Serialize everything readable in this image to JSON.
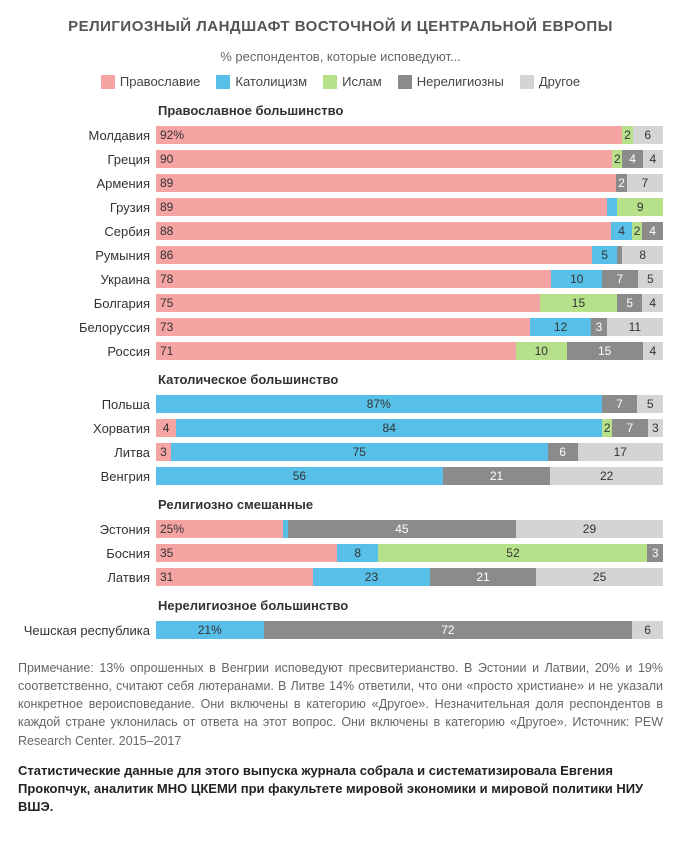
{
  "title": "РЕЛИГИОЗНЫЙ ЛАНДШАФТ ВОСТОЧНОЙ И ЦЕНТРАЛЬНОЙ ЕВРОПЫ",
  "subtitle": "% респондентов, которые исповедуют...",
  "colors": {
    "orthodox": "#f5a3a3",
    "catholic": "#58c0e8",
    "islam": "#b7e08a",
    "nonrel": "#8b8b8b",
    "other": "#d4d4d4"
  },
  "legend": [
    {
      "key": "orthodox",
      "label": "Православие"
    },
    {
      "key": "catholic",
      "label": "Католицизм"
    },
    {
      "key": "islam",
      "label": "Ислам"
    },
    {
      "key": "nonrel",
      "label": "Нерелигиозны"
    },
    {
      "key": "other",
      "label": "Другое"
    }
  ],
  "groups": [
    {
      "title": "Православное большинство",
      "rows": [
        {
          "country": "Молдавия",
          "segs": [
            {
              "k": "orthodox",
              "v": 92,
              "t": "92%",
              "left": true
            },
            {
              "k": "islam",
              "v": 2,
              "t": "2"
            },
            {
              "k": "other",
              "v": 6,
              "t": "6"
            }
          ]
        },
        {
          "country": "Греция",
          "segs": [
            {
              "k": "orthodox",
              "v": 90,
              "t": "90",
              "left": true
            },
            {
              "k": "islam",
              "v": 2,
              "t": "2"
            },
            {
              "k": "nonrel",
              "v": 4,
              "t": "4"
            },
            {
              "k": "other",
              "v": 4,
              "t": "4"
            }
          ]
        },
        {
          "country": "Армения",
          "segs": [
            {
              "k": "orthodox",
              "v": 89,
              "t": "89",
              "left": true
            },
            {
              "k": "nonrel",
              "v": 2,
              "t": "2"
            },
            {
              "k": "other",
              "v": 7,
              "t": "7"
            }
          ]
        },
        {
          "country": "Грузия",
          "segs": [
            {
              "k": "orthodox",
              "v": 89,
              "t": "89",
              "left": true
            },
            {
              "k": "catholic",
              "v": 2,
              "t": ""
            },
            {
              "k": "islam",
              "v": 9,
              "t": "9"
            }
          ]
        },
        {
          "country": "Сербия",
          "segs": [
            {
              "k": "orthodox",
              "v": 88,
              "t": "88",
              "left": true
            },
            {
              "k": "catholic",
              "v": 4,
              "t": "4"
            },
            {
              "k": "islam",
              "v": 2,
              "t": "2"
            },
            {
              "k": "nonrel",
              "v": 4,
              "t": "4"
            }
          ]
        },
        {
          "country": "Румыния",
          "segs": [
            {
              "k": "orthodox",
              "v": 86,
              "t": "86",
              "left": true
            },
            {
              "k": "catholic",
              "v": 5,
              "t": "5"
            },
            {
              "k": "nonrel",
              "v": 1,
              "t": ""
            },
            {
              "k": "other",
              "v": 8,
              "t": "8"
            }
          ]
        },
        {
          "country": "Украина",
          "segs": [
            {
              "k": "orthodox",
              "v": 78,
              "t": "78",
              "left": true
            },
            {
              "k": "catholic",
              "v": 10,
              "t": "10"
            },
            {
              "k": "nonrel",
              "v": 7,
              "t": "7"
            },
            {
              "k": "other",
              "v": 5,
              "t": "5"
            }
          ]
        },
        {
          "country": "Болгария",
          "segs": [
            {
              "k": "orthodox",
              "v": 75,
              "t": "75",
              "left": true
            },
            {
              "k": "islam",
              "v": 15,
              "t": "15"
            },
            {
              "k": "nonrel",
              "v": 5,
              "t": "5"
            },
            {
              "k": "other",
              "v": 4,
              "t": "4"
            }
          ]
        },
        {
          "country": "Белоруссия",
          "segs": [
            {
              "k": "orthodox",
              "v": 73,
              "t": "73",
              "left": true
            },
            {
              "k": "catholic",
              "v": 12,
              "t": "12"
            },
            {
              "k": "nonrel",
              "v": 3,
              "t": "3"
            },
            {
              "k": "other",
              "v": 11,
              "t": "11"
            }
          ]
        },
        {
          "country": "Россия",
          "segs": [
            {
              "k": "orthodox",
              "v": 71,
              "t": "71",
              "left": true
            },
            {
              "k": "islam",
              "v": 10,
              "t": "10"
            },
            {
              "k": "nonrel",
              "v": 15,
              "t": "15"
            },
            {
              "k": "other",
              "v": 4,
              "t": "4"
            }
          ]
        }
      ]
    },
    {
      "title": "Католическое большинство",
      "rows": [
        {
          "country": "Польша",
          "segs": [
            {
              "k": "catholic",
              "v": 87,
              "t": "87%"
            },
            {
              "k": "nonrel",
              "v": 7,
              "t": "7"
            },
            {
              "k": "other",
              "v": 5,
              "t": "5"
            }
          ]
        },
        {
          "country": "Хорватия",
          "segs": [
            {
              "k": "orthodox",
              "v": 4,
              "t": "4"
            },
            {
              "k": "catholic",
              "v": 84,
              "t": "84"
            },
            {
              "k": "islam",
              "v": 2,
              "t": "2"
            },
            {
              "k": "nonrel",
              "v": 7,
              "t": "7"
            },
            {
              "k": "other",
              "v": 3,
              "t": "3"
            }
          ]
        },
        {
          "country": "Литва",
          "segs": [
            {
              "k": "orthodox",
              "v": 3,
              "t": "3"
            },
            {
              "k": "catholic",
              "v": 75,
              "t": "75"
            },
            {
              "k": "nonrel",
              "v": 6,
              "t": "6"
            },
            {
              "k": "other",
              "v": 17,
              "t": "17"
            }
          ]
        },
        {
          "country": "Венгрия",
          "segs": [
            {
              "k": "catholic",
              "v": 56,
              "t": "56"
            },
            {
              "k": "nonrel",
              "v": 21,
              "t": "21"
            },
            {
              "k": "other",
              "v": 22,
              "t": "22"
            }
          ]
        }
      ]
    },
    {
      "title": "Религиозно смешанные",
      "rows": [
        {
          "country": "Эстония",
          "segs": [
            {
              "k": "orthodox",
              "v": 25,
              "t": "25%",
              "left": true
            },
            {
              "k": "catholic",
              "v": 1,
              "t": ""
            },
            {
              "k": "nonrel",
              "v": 45,
              "t": "45"
            },
            {
              "k": "other",
              "v": 29,
              "t": "29"
            }
          ]
        },
        {
          "country": "Босния",
          "segs": [
            {
              "k": "orthodox",
              "v": 35,
              "t": "35",
              "left": true
            },
            {
              "k": "catholic",
              "v": 8,
              "t": "8"
            },
            {
              "k": "islam",
              "v": 52,
              "t": "52"
            },
            {
              "k": "nonrel",
              "v": 3,
              "t": "3"
            }
          ]
        },
        {
          "country": "Латвия",
          "segs": [
            {
              "k": "orthodox",
              "v": 31,
              "t": "31",
              "left": true
            },
            {
              "k": "catholic",
              "v": 23,
              "t": "23"
            },
            {
              "k": "nonrel",
              "v": 21,
              "t": "21"
            },
            {
              "k": "other",
              "v": 25,
              "t": "25"
            }
          ]
        }
      ]
    },
    {
      "title": "Нерелигиозное большинство",
      "rows": [
        {
          "country": "Чешская республика",
          "segs": [
            {
              "k": "catholic",
              "v": 21,
              "t": "21%"
            },
            {
              "k": "nonrel",
              "v": 72,
              "t": "72"
            },
            {
              "k": "other",
              "v": 6,
              "t": "6"
            }
          ]
        }
      ]
    }
  ],
  "footnote": "Примечание: 13% опрошенных в Венгрии исповедуют пресвитерианство. В Эстонии и Латвии, 20% и 19% соответственно, считают себя лютеранами. В Литве 14% ответили, что они «просто христиане» и не указали конкретное вероисповедание. Они включены в категорию «Другое». Незначительная доля респондентов в каждой стране уклонилась от ответа на этот вопрос. Они включены в категорию «Другое». Источник: PEW Research Center. 2015–2017",
  "credit": "Статистические данные для этого выпуска журнала собрала и систематизировала Евгения Прокопчук, аналитик МНО ЦКЕМИ при факультете мировой экономики и мировой политики НИУ ВШЭ."
}
